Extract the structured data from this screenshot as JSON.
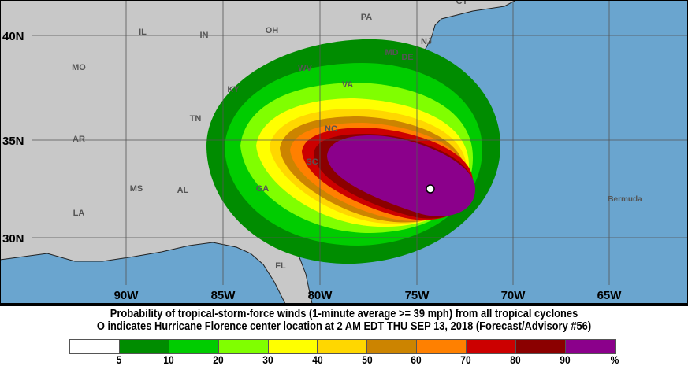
{
  "map": {
    "colors": {
      "ocean": "#6aa5cf",
      "land": "#c8c8c8",
      "grid": "#555555",
      "border": "#000000"
    },
    "lat_labels": [
      "40N",
      "35N",
      "30N"
    ],
    "lon_labels": [
      "90W",
      "85W",
      "80W",
      "75W",
      "70W",
      "65W"
    ],
    "region_labels": [
      "IL",
      "IN",
      "OH",
      "PA",
      "CT",
      "NJ",
      "MD",
      "DE",
      "MO",
      "WV",
      "VA",
      "KY",
      "TN",
      "NC",
      "AR",
      "SC",
      "MS",
      "AL",
      "GA",
      "LA",
      "FL",
      "Bermuda"
    ],
    "storm_center_marker": "circle"
  },
  "caption": {
    "line1": "Probability of tropical-storm-force winds (1-minute average >= 39 mph) from all tropical cyclones",
    "line2": "O indicates Hurricane Florence center location at 2 AM EDT THU SEP 13, 2018 (Forecast/Advisory #56)"
  },
  "legend": {
    "colors": [
      "#ffffff",
      "#008c00",
      "#00cc00",
      "#80ff00",
      "#ffff00",
      "#ffd700",
      "#cc8400",
      "#ff8000",
      "#cc0000",
      "#8b0000",
      "#8b008b"
    ],
    "ticks": [
      "5",
      "10",
      "20",
      "30",
      "40",
      "50",
      "60",
      "70",
      "80",
      "90",
      "%"
    ]
  }
}
